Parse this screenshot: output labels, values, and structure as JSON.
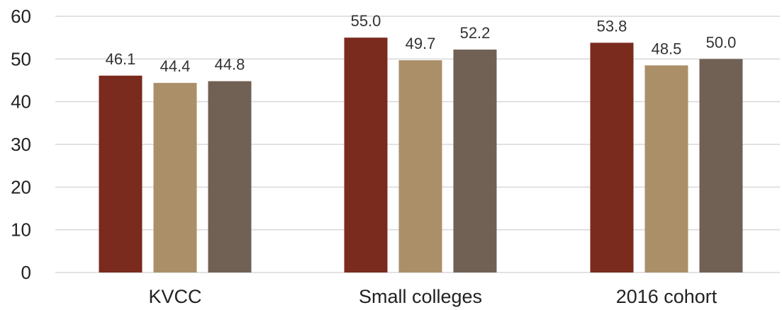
{
  "chart_data": {
    "type": "bar",
    "categories": [
      "KVCC",
      "Small colleges",
      "2016 cohort"
    ],
    "series": [
      {
        "values": [
          46.1,
          55.0,
          53.8
        ],
        "labels": [
          "46.1",
          "55.0",
          "53.8"
        ],
        "color": "#7b2a1e"
      },
      {
        "values": [
          44.4,
          49.7,
          48.5
        ],
        "labels": [
          "44.4",
          "49.7",
          "48.5"
        ],
        "color": "#ab8f68"
      },
      {
        "values": [
          44.8,
          52.2,
          50.0
        ],
        "labels": [
          "44.8",
          "52.2",
          "50.0"
        ],
        "color": "#716054"
      }
    ],
    "ylim": [
      0,
      60
    ],
    "yticks": [
      0,
      10,
      20,
      30,
      40,
      50,
      60
    ],
    "ytick_labels": [
      "0",
      "10",
      "20",
      "30",
      "40",
      "50",
      "60"
    ],
    "grid": true,
    "title": "",
    "xlabel": "",
    "ylabel": ""
  }
}
